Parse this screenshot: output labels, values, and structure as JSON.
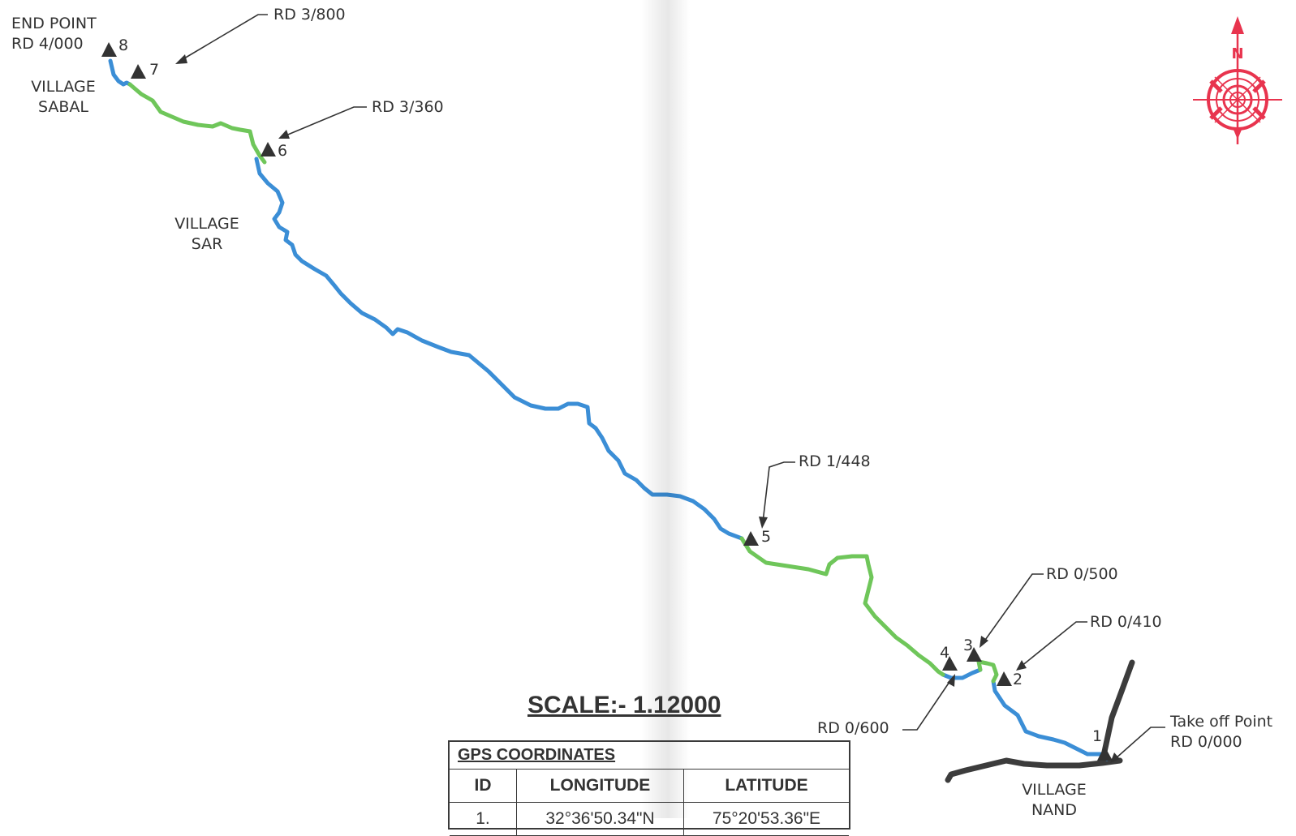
{
  "points": [
    {
      "id": "1",
      "rd": "RD 0/000",
      "caption": "Take off Point"
    },
    {
      "id": "2",
      "rd": "RD 0/410"
    },
    {
      "id": "3",
      "rd": "RD 0/500"
    },
    {
      "id": "4",
      "rd": "RD 0/600"
    },
    {
      "id": "5",
      "rd": "RD 1/448"
    },
    {
      "id": "6",
      "rd": "RD 3/360"
    },
    {
      "id": "7",
      "rd": "RD 3/800"
    },
    {
      "id": "8",
      "rd": "RD 4/000",
      "caption": "END POINT"
    }
  ],
  "villages": [
    {
      "line1": "VILLAGE",
      "line2": "SABAL"
    },
    {
      "line1": "VILLAGE",
      "line2": "SAR"
    },
    {
      "line1": "VILLAGE",
      "line2": "NAND"
    }
  ],
  "compass": {
    "north_label": "N",
    "color": "#e8344e"
  },
  "route_colors": {
    "blue": "#3b8ed6",
    "green": "#6fc65a",
    "road": "#3c3c3c"
  },
  "scale_label": "SCALE:- 1.12000",
  "gps_table": {
    "title": "GPS COORDINATES",
    "headers": [
      "ID",
      "LONGITUDE",
      "LATITUDE"
    ],
    "rows": [
      {
        "id": "1.",
        "longitude": "32°36'50.34\"N",
        "latitude": "75°20'53.36\"E"
      }
    ]
  }
}
